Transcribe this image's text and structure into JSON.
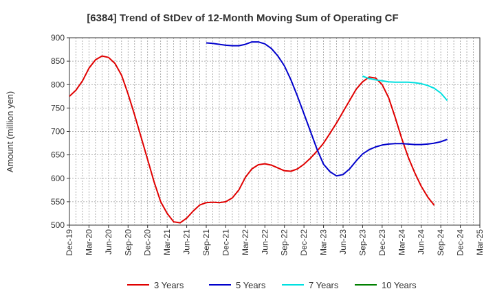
{
  "chart_data": {
    "type": "line",
    "title": "[6384]  Trend of StDev of 12-Month Moving Sum of Operating CF",
    "ylabel": "Amount (million yen)",
    "xlabel": "",
    "ylim": [
      500,
      900
    ],
    "yticks": [
      500,
      550,
      600,
      650,
      700,
      750,
      800,
      850,
      900
    ],
    "x_ticks": [
      "Dec-19",
      "Mar-20",
      "Jun-20",
      "Sep-20",
      "Dec-20",
      "Mar-21",
      "Jun-21",
      "Sep-21",
      "Dec-21",
      "Mar-22",
      "Jun-22",
      "Sep-22",
      "Dec-22",
      "Mar-23",
      "Jun-23",
      "Sep-23",
      "Dec-23",
      "Mar-24",
      "Jun-24",
      "Sep-24",
      "Dec-24",
      "Mar-25"
    ],
    "grid": true,
    "legend_position": "bottom",
    "series": [
      {
        "name": "3 Years",
        "color": "#e00000",
        "start_index": 0,
        "values": [
          775,
          788,
          808,
          835,
          853,
          861,
          858,
          845,
          820,
          780,
          735,
          688,
          640,
          592,
          550,
          525,
          507,
          505,
          515,
          530,
          543,
          548,
          549,
          548,
          550,
          558,
          575,
          602,
          620,
          629,
          631,
          628,
          622,
          616,
          615,
          620,
          630,
          643,
          658,
          675,
          696,
          718,
          742,
          766,
          790,
          806,
          816,
          814,
          800,
          772,
          730,
          685,
          645,
          612,
          583,
          560,
          542
        ]
      },
      {
        "name": "5 Years",
        "color": "#0000cc",
        "start_index": 21,
        "values": [
          889,
          888,
          886,
          884,
          883,
          883,
          886,
          891,
          891,
          887,
          877,
          861,
          840,
          810,
          775,
          738,
          700,
          662,
          630,
          614,
          605,
          608,
          620,
          637,
          652,
          661,
          667,
          671,
          673,
          674,
          674,
          673,
          672,
          672,
          673,
          675,
          678,
          683
        ]
      },
      {
        "name": "7 Years",
        "color": "#00e0e0",
        "start_index": 45,
        "values": [
          818,
          813,
          810,
          808,
          806,
          805,
          805,
          805,
          804,
          802,
          798,
          792,
          782,
          766
        ]
      },
      {
        "name": "10 Years",
        "color": "#008000",
        "start_index": 0,
        "values": []
      }
    ]
  }
}
